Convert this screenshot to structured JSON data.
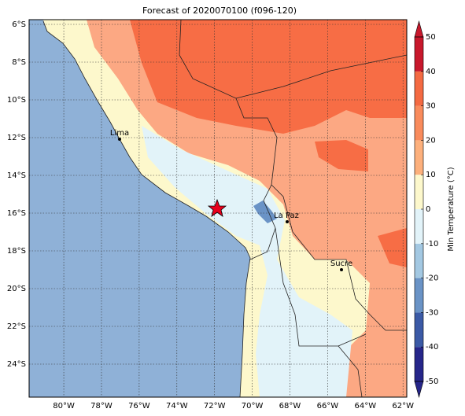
{
  "chart_data": {
    "type": "map",
    "title": "Forecast of 2020070100 (f096-120)",
    "xlim": [
      -81.84,
      -61.8
    ],
    "ylim": [
      -25.75,
      -5.75
    ],
    "xticks": [
      {
        "value": -80,
        "label": "80°W"
      },
      {
        "value": -78,
        "label": "78°W"
      },
      {
        "value": -76,
        "label": "76°W"
      },
      {
        "value": -74,
        "label": "74°W"
      },
      {
        "value": -72,
        "label": "72°W"
      },
      {
        "value": -70,
        "label": "70°W"
      },
      {
        "value": -68,
        "label": "68°W"
      },
      {
        "value": -66,
        "label": "66°W"
      },
      {
        "value": -64,
        "label": "64°W"
      },
      {
        "value": -62,
        "label": "62°W"
      }
    ],
    "yticks": [
      {
        "value": -6,
        "label": "6°S"
      },
      {
        "value": -8,
        "label": "8°S"
      },
      {
        "value": -10,
        "label": "10°S"
      },
      {
        "value": -12,
        "label": "12°S"
      },
      {
        "value": -14,
        "label": "14°S"
      },
      {
        "value": -16,
        "label": "16°S"
      },
      {
        "value": -18,
        "label": "18°S"
      },
      {
        "value": -20,
        "label": "20°S"
      },
      {
        "value": -22,
        "label": "22°S"
      },
      {
        "value": -24,
        "label": "24°S"
      }
    ],
    "grid": true,
    "cities": [
      "Lima",
      "La Paz",
      "Sucre"
    ],
    "colorbar": {
      "label": "Min Temperature (°C)",
      "lim": [
        -50,
        50
      ],
      "ticks": [
        -50,
        -40,
        -30,
        -20,
        -10,
        0,
        10,
        20,
        30,
        40,
        50
      ],
      "colors": [
        "#26268a",
        "#3b5aa6",
        "#6a93c6",
        "#a3c8e2",
        "#e2f3f9",
        "#fdf8cc",
        "#fdb07c",
        "#f98b5c",
        "#f46a42",
        "#c8182c"
      ]
    }
  }
}
